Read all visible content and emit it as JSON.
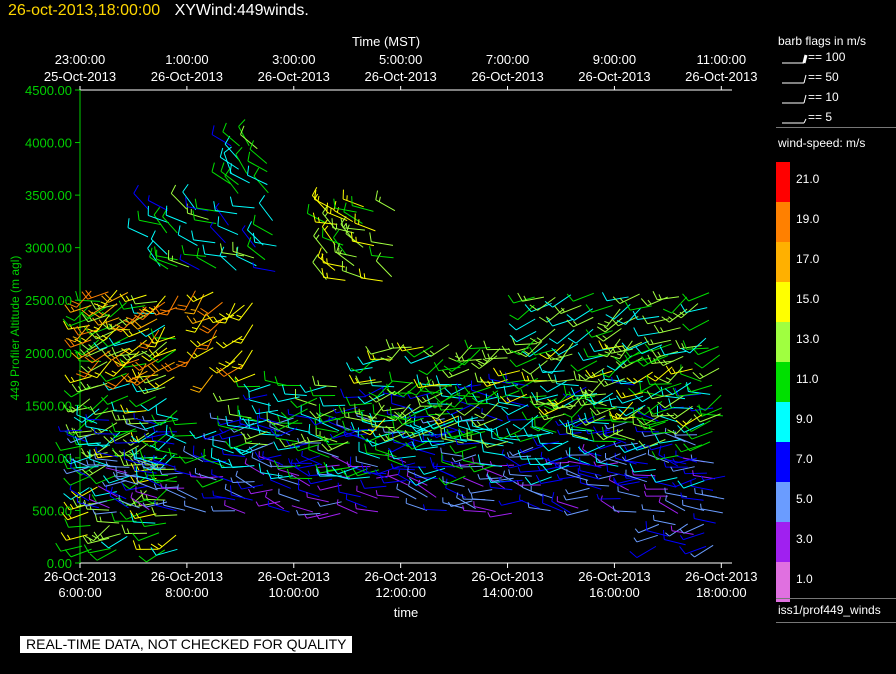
{
  "header": {
    "timestamp": "26-oct-2013,18:00:00",
    "title": "XYWind:449winds."
  },
  "chart_data": {
    "type": "scatter",
    "marker": "wind-barb",
    "ylabel": "449 Profiler Altitude (m agl)",
    "xlabel": "time",
    "top_axis_title": "Time (MST)",
    "ylim": [
      0,
      4500
    ],
    "y_ticks": [
      "0.00",
      "500.00",
      "1000.00",
      "1500.00",
      "2000.00",
      "2500.00",
      "3000.00",
      "3500.00",
      "4000.00",
      "4500.00"
    ],
    "xlim_hours": [
      6,
      18.2
    ],
    "bottom_ticks": [
      {
        "hour": 6,
        "date": "26-Oct-2013",
        "time": "6:00:00"
      },
      {
        "hour": 8,
        "date": "26-Oct-2013",
        "time": "8:00:00"
      },
      {
        "hour": 10,
        "date": "26-Oct-2013",
        "time": "10:00:00"
      },
      {
        "hour": 12,
        "date": "26-Oct-2013",
        "time": "12:00:00"
      },
      {
        "hour": 14,
        "date": "26-Oct-2013",
        "time": "14:00:00"
      },
      {
        "hour": 16,
        "date": "26-Oct-2013",
        "time": "16:00:00"
      },
      {
        "hour": 18,
        "date": "26-Oct-2013",
        "time": "18:00:00"
      }
    ],
    "top_ticks": [
      {
        "hour": 6,
        "time": "23:00:00",
        "date": "25-Oct-2013"
      },
      {
        "hour": 8,
        "time": "1:00:00",
        "date": "26-Oct-2013"
      },
      {
        "hour": 10,
        "time": "3:00:00",
        "date": "26-Oct-2013"
      },
      {
        "hour": 12,
        "time": "5:00:00",
        "date": "26-Oct-2013"
      },
      {
        "hour": 14,
        "time": "7:00:00",
        "date": "26-Oct-2013"
      },
      {
        "hour": 16,
        "time": "9:00:00",
        "date": "26-Oct-2013"
      },
      {
        "hour": 18,
        "time": "11:00:00",
        "date": "26-Oct-2013"
      }
    ],
    "regions": [
      {
        "h0": 6.0,
        "h1": 7.8,
        "alt0": 150,
        "alt1": 2500,
        "speed": 12,
        "dir": 250
      },
      {
        "h0": 6.0,
        "h1": 18.1,
        "alt0": 500,
        "alt1": 950,
        "speed": 5,
        "dir": 280
      },
      {
        "h0": 6.0,
        "h1": 17.8,
        "alt0": 800,
        "alt1": 1350,
        "speed": 8,
        "dir": 270
      },
      {
        "h0": 9.0,
        "h1": 18.1,
        "alt0": 1150,
        "alt1": 1700,
        "speed": 10,
        "dir": 265
      },
      {
        "h0": 11.5,
        "h1": 18.0,
        "alt0": 1400,
        "alt1": 2100,
        "speed": 12,
        "dir": 245
      },
      {
        "h0": 14.5,
        "h1": 17.8,
        "alt0": 2000,
        "alt1": 2600,
        "speed": 11,
        "dir": 240
      },
      {
        "h0": 7.3,
        "h1": 9.8,
        "alt0": 2800,
        "alt1": 3450,
        "speed": 10,
        "dir": 300
      },
      {
        "h0": 8.8,
        "h1": 9.8,
        "alt0": 3500,
        "alt1": 4000,
        "speed": 10,
        "dir": 320
      },
      {
        "h0": 6.0,
        "h1": 9.4,
        "alt0": 1800,
        "alt1": 2600,
        "speed": 17,
        "dir": 230
      },
      {
        "h0": 10.6,
        "h1": 12.0,
        "alt0": 2700,
        "alt1": 3400,
        "speed": 13,
        "dir": 300
      },
      {
        "h0": 16.8,
        "h1": 18.0,
        "alt0": 150,
        "alt1": 400,
        "speed": 6,
        "dir": 260
      }
    ]
  },
  "legend": {
    "barb_title": "barb flags in m/s",
    "flags": [
      {
        "label": "== 100",
        "kind": "flag"
      },
      {
        "label": "== 50",
        "kind": "pennant"
      },
      {
        "label": "== 10",
        "kind": "full"
      },
      {
        "label": "== 5",
        "kind": "half"
      }
    ],
    "speed_title": "wind-speed: m/s",
    "colorbar": [
      {
        "label": "21.0",
        "color": "#ff0000"
      },
      {
        "label": "19.0",
        "color": "#ff8000"
      },
      {
        "label": "17.0",
        "color": "#ffb000"
      },
      {
        "label": "15.0",
        "color": "#ffff00"
      },
      {
        "label": "13.0",
        "color": "#a0ff40"
      },
      {
        "label": "11.0",
        "color": "#00e000"
      },
      {
        "label": "9.0",
        "color": "#00ffff"
      },
      {
        "label": "7.0",
        "color": "#0000ff"
      },
      {
        "label": "5.0",
        "color": "#6a9cff"
      },
      {
        "label": "3.0",
        "color": "#a020f0"
      },
      {
        "label": "1.0",
        "color": "#e070e0"
      }
    ],
    "source": "iss1/prof449_winds"
  },
  "footer_note": "REAL-TIME DATA, NOT CHECKED FOR QUALITY"
}
